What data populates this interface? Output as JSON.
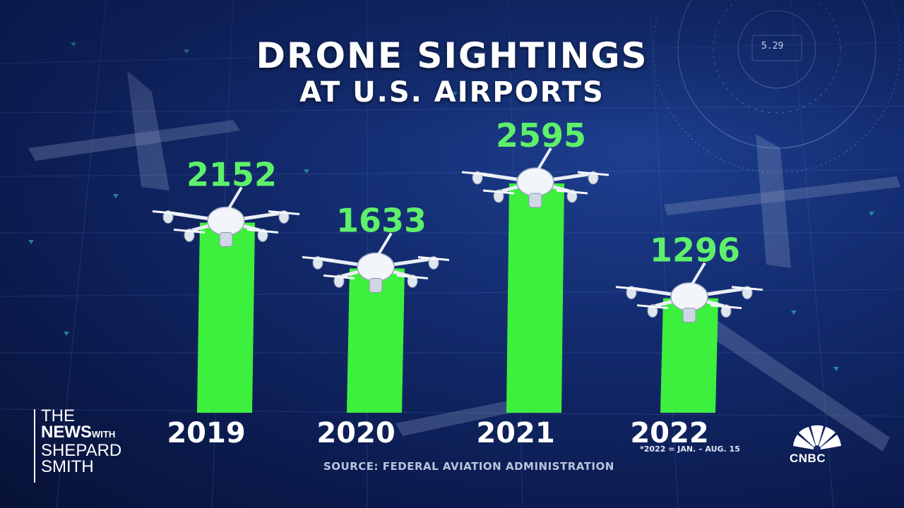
{
  "title": {
    "line1": "DRONE SIGHTINGS",
    "line2": "AT U.S. AIRPORTS"
  },
  "chart_data": {
    "type": "bar",
    "title": "DRONE SIGHTINGS AT U.S. AIRPORTS",
    "categories": [
      "2019",
      "2020",
      "2021",
      "2022"
    ],
    "values": [
      2152,
      1633,
      2595,
      1296
    ],
    "value_labels": [
      "2152",
      "1633",
      "2595",
      "1296"
    ],
    "bar_color": "#3df03d",
    "value_label_color": "#5ef06a",
    "xlabel": "",
    "ylabel": "",
    "grid": false,
    "legend": "none"
  },
  "footnote": "*2022 = JAN. – AUG. 15",
  "source": "SOURCE: FEDERAL AVIATION ADMINISTRATION",
  "show_logo": {
    "line1": "THE",
    "news": "NEWS",
    "with": "WITH",
    "line3": "SHEPARD",
    "line4": "SMITH"
  },
  "network_logo": {
    "text": "CNBC",
    "icon": "peacock-icon"
  },
  "hud_readout": "5.29",
  "colors": {
    "background": "#12296b",
    "text": "#ffffff"
  }
}
